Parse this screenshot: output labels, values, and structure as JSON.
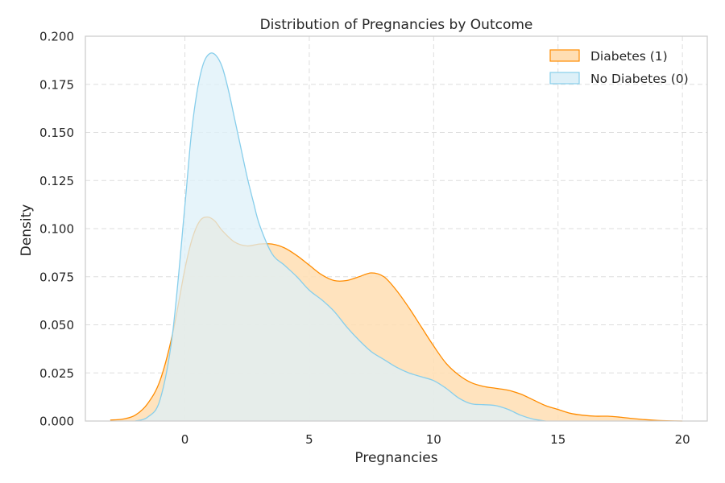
{
  "chart_data": {
    "type": "area",
    "title": "Distribution of Pregnancies by Outcome",
    "xlabel": "Pregnancies",
    "ylabel": "Density",
    "xlim": [
      -4,
      21
    ],
    "ylim": [
      0,
      0.2
    ],
    "xticks": [
      0,
      5,
      10,
      15,
      20
    ],
    "xtick_labels": [
      "0",
      "5",
      "10",
      "15",
      "20"
    ],
    "yticks": [
      0,
      0.025,
      0.05,
      0.075,
      0.1,
      0.125,
      0.15,
      0.175,
      0.2
    ],
    "ytick_labels": [
      "0.000",
      "0.025",
      "0.050",
      "0.075",
      "0.100",
      "0.125",
      "0.150",
      "0.175",
      "0.200"
    ],
    "grid": true,
    "legend_position": "top-right",
    "series": [
      {
        "name": "Diabetes (1)",
        "line_color": "#ff8c00",
        "fill_color": "#ffdeb3",
        "x": [
          -3,
          -2.5,
          -2,
          -1.5,
          -1,
          -0.5,
          0,
          0.3,
          0.6,
          0.9,
          1.2,
          1.5,
          2,
          2.5,
          3,
          3.5,
          4,
          4.5,
          5,
          5.5,
          6,
          6.5,
          7,
          7.5,
          8,
          8.5,
          9,
          9.5,
          10,
          10.5,
          11,
          11.5,
          12,
          12.5,
          13,
          13.5,
          14,
          14.5,
          15,
          15.5,
          16,
          16.5,
          17,
          17.5,
          18,
          18.5,
          19,
          19.5,
          20
        ],
        "y": [
          0.0005,
          0.001,
          0.003,
          0.009,
          0.021,
          0.045,
          0.079,
          0.095,
          0.104,
          0.106,
          0.104,
          0.099,
          0.093,
          0.091,
          0.092,
          0.092,
          0.09,
          0.086,
          0.081,
          0.076,
          0.073,
          0.073,
          0.075,
          0.077,
          0.075,
          0.068,
          0.059,
          0.049,
          0.039,
          0.03,
          0.024,
          0.02,
          0.018,
          0.017,
          0.016,
          0.014,
          0.011,
          0.008,
          0.006,
          0.004,
          0.003,
          0.0025,
          0.0025,
          0.002,
          0.0013,
          0.0007,
          0.0003,
          0.0001,
          0
        ]
      },
      {
        "name": "No Diabetes (0)",
        "line_color": "#87ceeb",
        "fill_color": "#ddf0f8",
        "x": [
          -2,
          -1.5,
          -1,
          -0.5,
          0,
          0.25,
          0.5,
          0.75,
          1,
          1.25,
          1.5,
          1.75,
          2,
          2.25,
          2.5,
          2.75,
          3,
          3.5,
          4,
          4.5,
          5,
          5.5,
          6,
          6.5,
          7,
          7.5,
          8,
          8.5,
          9,
          9.5,
          10,
          10.5,
          11,
          11.5,
          12,
          12.5,
          13,
          13.5,
          14,
          14.5
        ],
        "y": [
          0,
          0.002,
          0.011,
          0.045,
          0.112,
          0.148,
          0.172,
          0.186,
          0.191,
          0.19,
          0.184,
          0.172,
          0.157,
          0.142,
          0.127,
          0.114,
          0.102,
          0.087,
          0.081,
          0.075,
          0.068,
          0.063,
          0.057,
          0.049,
          0.042,
          0.036,
          0.032,
          0.028,
          0.025,
          0.023,
          0.021,
          0.017,
          0.012,
          0.009,
          0.0085,
          0.008,
          0.006,
          0.003,
          0.001,
          0
        ]
      }
    ]
  }
}
